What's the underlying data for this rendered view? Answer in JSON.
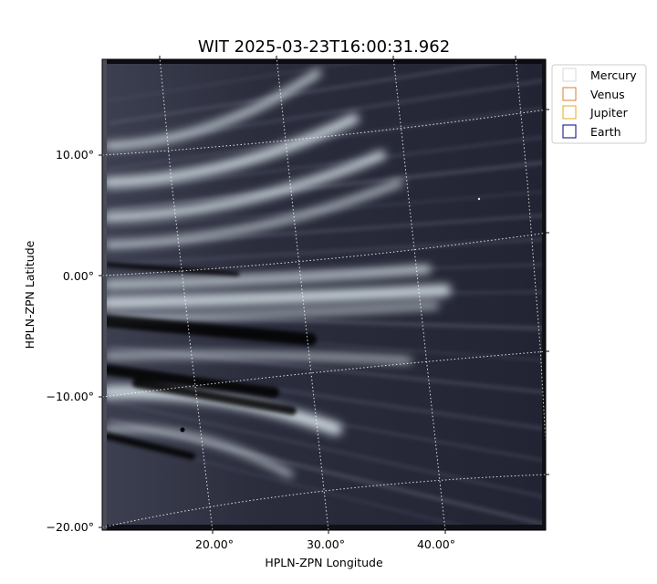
{
  "chart_data": {
    "type": "heatmap",
    "title": "WIT 2025-03-23T16:00:31.962",
    "xlabel": "HPLN-ZPN Longitude",
    "ylabel": "HPLN-ZPN Latitude",
    "x_ticks": [
      "20.00°",
      "30.00°",
      "40.00°"
    ],
    "y_ticks": [
      "10.00°",
      "0.00°",
      "−10.00°",
      "−20.00°"
    ],
    "xlim": [
      10.2,
      49.9
    ],
    "ylim": [
      -20.6,
      17.6
    ],
    "grid": true,
    "colormap": "bone",
    "legend": {
      "position": "outside-top-right",
      "entries": [
        {
          "name": "Mercury",
          "color": "#d9d9d9"
        },
        {
          "name": "Venus",
          "color": "#e07b2a"
        },
        {
          "name": "Jupiter",
          "color": "#e8a917"
        },
        {
          "name": "Earth",
          "color": "#000080"
        }
      ]
    }
  }
}
